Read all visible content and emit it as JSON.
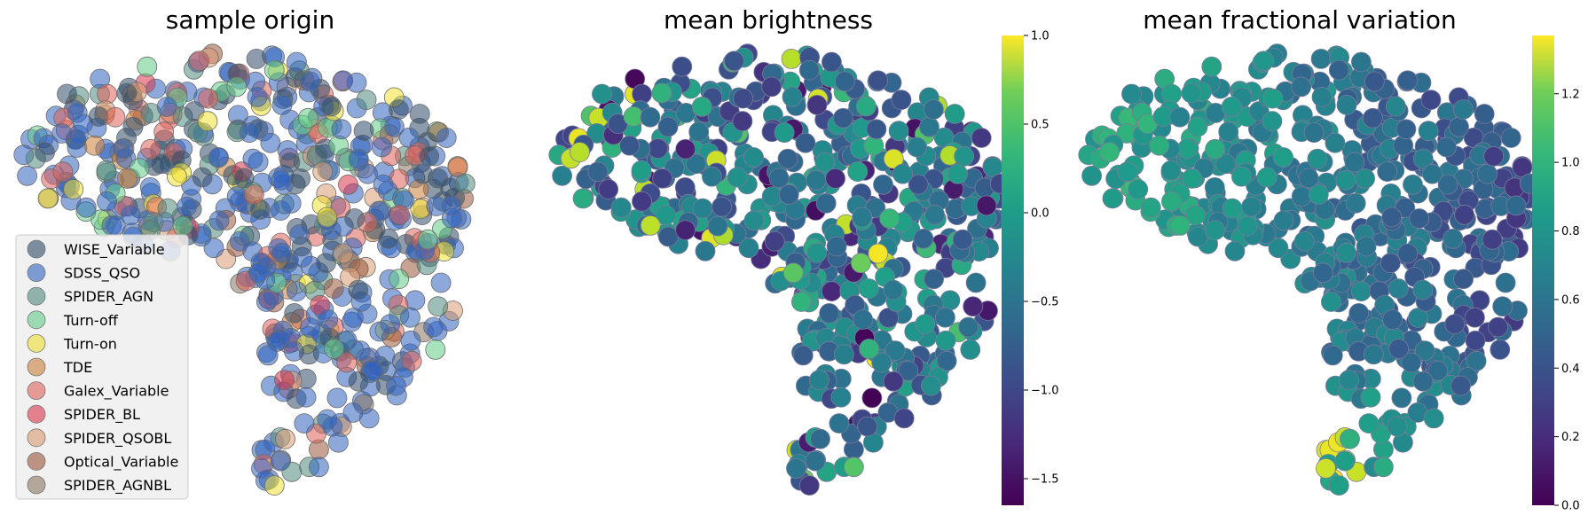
{
  "chart_data": [
    {
      "type": "scatter",
      "title": "sample origin",
      "legend": {
        "placement": "lower-left",
        "entries": [
          {
            "name": "WISE_Variable",
            "color": "#2f4b68"
          },
          {
            "name": "SDSS_QSO",
            "color": "#2f63c0"
          },
          {
            "name": "SPIDER_AGN",
            "color": "#4f8a7d"
          },
          {
            "name": "Turn-off",
            "color": "#62cc88"
          },
          {
            "name": "Turn-on",
            "color": "#f0e032"
          },
          {
            "name": "TDE",
            "color": "#cc7f3a"
          },
          {
            "name": "Galex_Variable",
            "color": "#e0605a"
          },
          {
            "name": "SPIDER_BL",
            "color": "#d8354b"
          },
          {
            "name": "SPIDER_QSOBL",
            "color": "#d89b72"
          },
          {
            "name": "Optical_Variable",
            "color": "#9a5538"
          },
          {
            "name": "SPIDER_AGNBL",
            "color": "#8a7460"
          }
        ]
      },
      "axes_visible": false
    },
    {
      "type": "scatter",
      "title": "mean brightness",
      "colorbar": {
        "colormap": "viridis",
        "range": [
          -1.65,
          1.0
        ],
        "ticks": [
          "1.0",
          "0.5",
          "0.0",
          "−0.5",
          "−1.0",
          "−1.5"
        ]
      },
      "axes_visible": false
    },
    {
      "type": "scatter",
      "title": "mean fractional variation",
      "colorbar": {
        "colormap": "viridis",
        "range": [
          0.0,
          1.37
        ],
        "ticks": [
          "1.2",
          "1.0",
          "0.8",
          "0.6",
          "0.4",
          "0.2",
          "0.0"
        ]
      },
      "axes_visible": false
    }
  ]
}
